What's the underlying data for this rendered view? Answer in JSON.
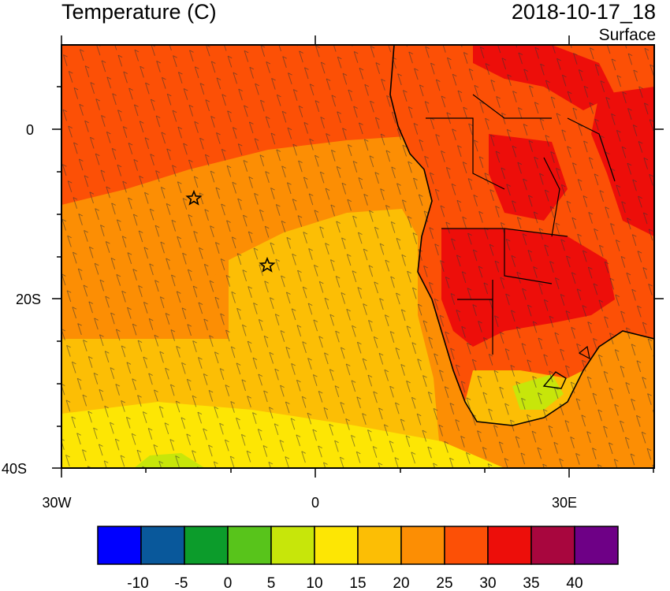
{
  "title": "Temperature (C)",
  "date": "2018-10-17_18",
  "level": "Surface",
  "map": {
    "lat_range": [
      "10N",
      "40S"
    ],
    "lon_range": [
      "30W",
      "40E"
    ],
    "y_ticks": [
      "0",
      "20S",
      "40S"
    ],
    "x_ticks": [
      "30W",
      "0",
      "30E"
    ],
    "overlay": "wind barbs",
    "markers": [
      {
        "name": "star-marker-1",
        "lat": -8,
        "lon": -14.5
      },
      {
        "name": "star-marker-2",
        "lat": -16,
        "lon": -5.8
      }
    ]
  },
  "colorbar": {
    "colors": [
      "#0000ff",
      "#09589b",
      "#0c9c2b",
      "#58c41b",
      "#c7e60a",
      "#fde604",
      "#fcbe05",
      "#fc8e04",
      "#fc5006",
      "#ed0e0a",
      "#a8063e",
      "#6e0086"
    ],
    "labels": [
      "-10",
      "-5",
      "0",
      "5",
      "10",
      "15",
      "20",
      "25",
      "30",
      "35",
      "40"
    ]
  }
}
